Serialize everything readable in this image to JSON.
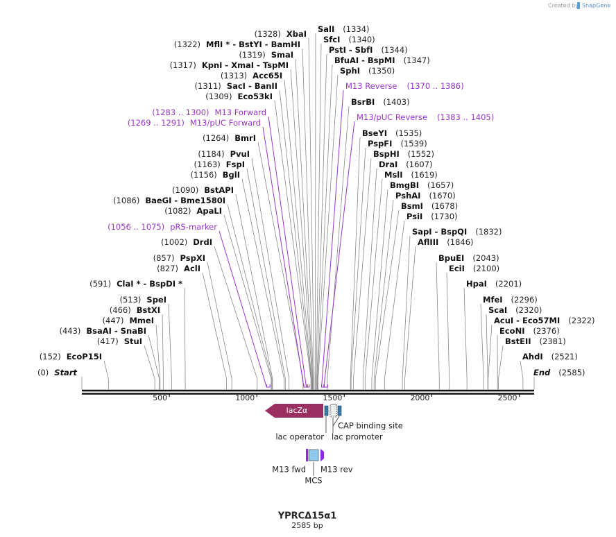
{
  "map": {
    "credit": {
      "prefix": "Created by",
      "brand": "SnapGene"
    },
    "sites_left": [
      {
        "name": "XbaI",
        "pos": {
          "value": 1328,
          "label": "(1328)"
        }
      },
      {
        "name": "MflI * - BstYI - BamHI",
        "pos": {
          "value": 1322,
          "label": "(1322)"
        }
      },
      {
        "name": "SmaI",
        "pos": {
          "value": 1319,
          "label": "(1319)"
        }
      },
      {
        "name": "KpnI - XmaI - TspMI",
        "pos": {
          "value": 1317,
          "label": "(1317)"
        }
      },
      {
        "name": "Acc65I",
        "pos": {
          "value": 1313,
          "label": "(1313)"
        }
      },
      {
        "name": "SacI - BanII",
        "pos": {
          "value": 1311,
          "label": "(1311)"
        }
      },
      {
        "name": "Eco53kI",
        "pos": {
          "value": 1309,
          "label": "(1309)"
        }
      },
      {
        "name": "BmrI",
        "pos": {
          "value": 1264,
          "label": "(1264)"
        }
      },
      {
        "name": "PvuI",
        "pos": {
          "value": 1184,
          "label": "(1184)"
        }
      },
      {
        "name": "FspI",
        "pos": {
          "value": 1163,
          "label": "(1163)"
        }
      },
      {
        "name": "BglI",
        "pos": {
          "value": 1156,
          "label": "(1156)"
        }
      },
      {
        "name": "BstAPI",
        "pos": {
          "value": 1090,
          "label": "(1090)"
        }
      },
      {
        "name": "BaeGI - Bme1580I",
        "pos": {
          "value": 1086,
          "label": "(1086)"
        }
      },
      {
        "name": "ApaLI",
        "pos": {
          "value": 1082,
          "label": "(1082)"
        }
      },
      {
        "name": "DrdI",
        "pos": {
          "value": 1002,
          "label": "(1002)"
        }
      },
      {
        "name": "PspXI",
        "pos": {
          "value": 857,
          "label": "(857)"
        }
      },
      {
        "name": "AclI",
        "pos": {
          "value": 827,
          "label": "(827)"
        }
      },
      {
        "name": "ClaI * - BspDI *",
        "pos": {
          "value": 591,
          "label": "(591)"
        }
      },
      {
        "name": "SpeI",
        "pos": {
          "value": 513,
          "label": "(513)"
        }
      },
      {
        "name": "BstXI",
        "pos": {
          "value": 466,
          "label": "(466)"
        }
      },
      {
        "name": "MmeI",
        "pos": {
          "value": 447,
          "label": "(447)"
        }
      },
      {
        "name": "BsaAI - SnaBI",
        "pos": {
          "value": 443,
          "label": "(443)"
        }
      },
      {
        "name": "StuI",
        "pos": {
          "value": 417,
          "label": "(417)"
        }
      },
      {
        "name": "EcoP15I",
        "pos": {
          "value": 152,
          "label": "(152)"
        }
      }
    ],
    "sites_right": [
      {
        "name": "SalI",
        "pos": {
          "value": 1334,
          "label": "(1334)"
        }
      },
      {
        "name": "SfcI",
        "pos": {
          "value": 1340,
          "label": "(1340)"
        }
      },
      {
        "name": "PstI - SbfI",
        "pos": {
          "value": 1344,
          "label": "(1344)"
        }
      },
      {
        "name": "BfuAI - BspMI",
        "pos": {
          "value": 1347,
          "label": "(1347)"
        }
      },
      {
        "name": "SphI",
        "pos": {
          "value": 1350,
          "label": "(1350)"
        }
      },
      {
        "name": "BsrBI",
        "pos": {
          "value": 1403,
          "label": "(1403)"
        }
      },
      {
        "name": "BseYI",
        "pos": {
          "value": 1535,
          "label": "(1535)"
        }
      },
      {
        "name": "PspFI",
        "pos": {
          "value": 1539,
          "label": "(1539)"
        }
      },
      {
        "name": "BspHI",
        "pos": {
          "value": 1552,
          "label": "(1552)"
        }
      },
      {
        "name": "DraI",
        "pos": {
          "value": 1607,
          "label": "(1607)"
        }
      },
      {
        "name": "MslI",
        "pos": {
          "value": 1619,
          "label": "(1619)"
        }
      },
      {
        "name": "BmgBI",
        "pos": {
          "value": 1657,
          "label": "(1657)"
        }
      },
      {
        "name": "PshAI",
        "pos": {
          "value": 1670,
          "label": "(1670)"
        }
      },
      {
        "name": "BsmI",
        "pos": {
          "value": 1678,
          "label": "(1678)"
        }
      },
      {
        "name": "PsiI",
        "pos": {
          "value": 1730,
          "label": "(1730)"
        }
      },
      {
        "name": "SapI - BspQI",
        "pos": {
          "value": 1832,
          "label": "(1832)"
        }
      },
      {
        "name": "AflIII",
        "pos": {
          "value": 1846,
          "label": "(1846)"
        }
      },
      {
        "name": "BpuEI",
        "pos": {
          "value": 2043,
          "label": "(2043)"
        }
      },
      {
        "name": "EciI",
        "pos": {
          "value": 2100,
          "label": "(2100)"
        }
      },
      {
        "name": "HpaI",
        "pos": {
          "value": 2201,
          "label": "(2201)"
        }
      },
      {
        "name": "MfeI",
        "pos": {
          "value": 2296,
          "label": "(2296)"
        }
      },
      {
        "name": "ScaI",
        "pos": {
          "value": 2320,
          "label": "(2320)"
        }
      },
      {
        "name": "AcuI - Eco57MI",
        "pos": {
          "value": 2322,
          "label": "(2322)"
        }
      },
      {
        "name": "EcoNI",
        "pos": {
          "value": 2376,
          "label": "(2376)"
        }
      },
      {
        "name": "BstEII",
        "pos": {
          "value": 2381,
          "label": "(2381)"
        }
      },
      {
        "name": "AhdI",
        "pos": {
          "value": 2521,
          "label": "(2521)"
        }
      }
    ],
    "features_left": [
      {
        "name": "M13 Forward",
        "range": {
          "start": 1283,
          "end": 1300,
          "label": "(1283 .. 1300)"
        }
      },
      {
        "name": "M13/pUC Forward",
        "range": {
          "start": 1269,
          "end": 1291,
          "label": "(1269 .. 1291)"
        }
      },
      {
        "name": "pRS-marker",
        "range": {
          "start": 1056,
          "end": 1075,
          "label": "(1056 .. 1075)"
        }
      }
    ],
    "features_right": [
      {
        "name": "M13 Reverse",
        "range": {
          "start": 1370,
          "end": 1386,
          "label": "(1370 .. 1386)"
        }
      },
      {
        "name": "M13/pUC Reverse",
        "range": {
          "start": 1383,
          "end": 1405,
          "label": "(1383 .. 1405)"
        }
      }
    ],
    "start": {
      "label": "Start",
      "pos": {
        "value": 0,
        "label": "(0)"
      }
    },
    "end": {
      "label": "End",
      "pos": {
        "value": 2585,
        "label": "(2585)"
      }
    },
    "ruler_ticks": [
      500,
      1000,
      1500,
      2000,
      2500
    ],
    "elements": {
      "lacz": "lacZα",
      "cap": "CAP binding site",
      "operator": "lac operator",
      "promoter": "lac promoter",
      "m13_fwd": "M13 fwd",
      "m13_rev": "M13 rev",
      "mcs": "MCS"
    },
    "title": "YPRCΔ15α1",
    "length": {
      "value": 2585,
      "label": "2585 bp"
    }
  }
}
